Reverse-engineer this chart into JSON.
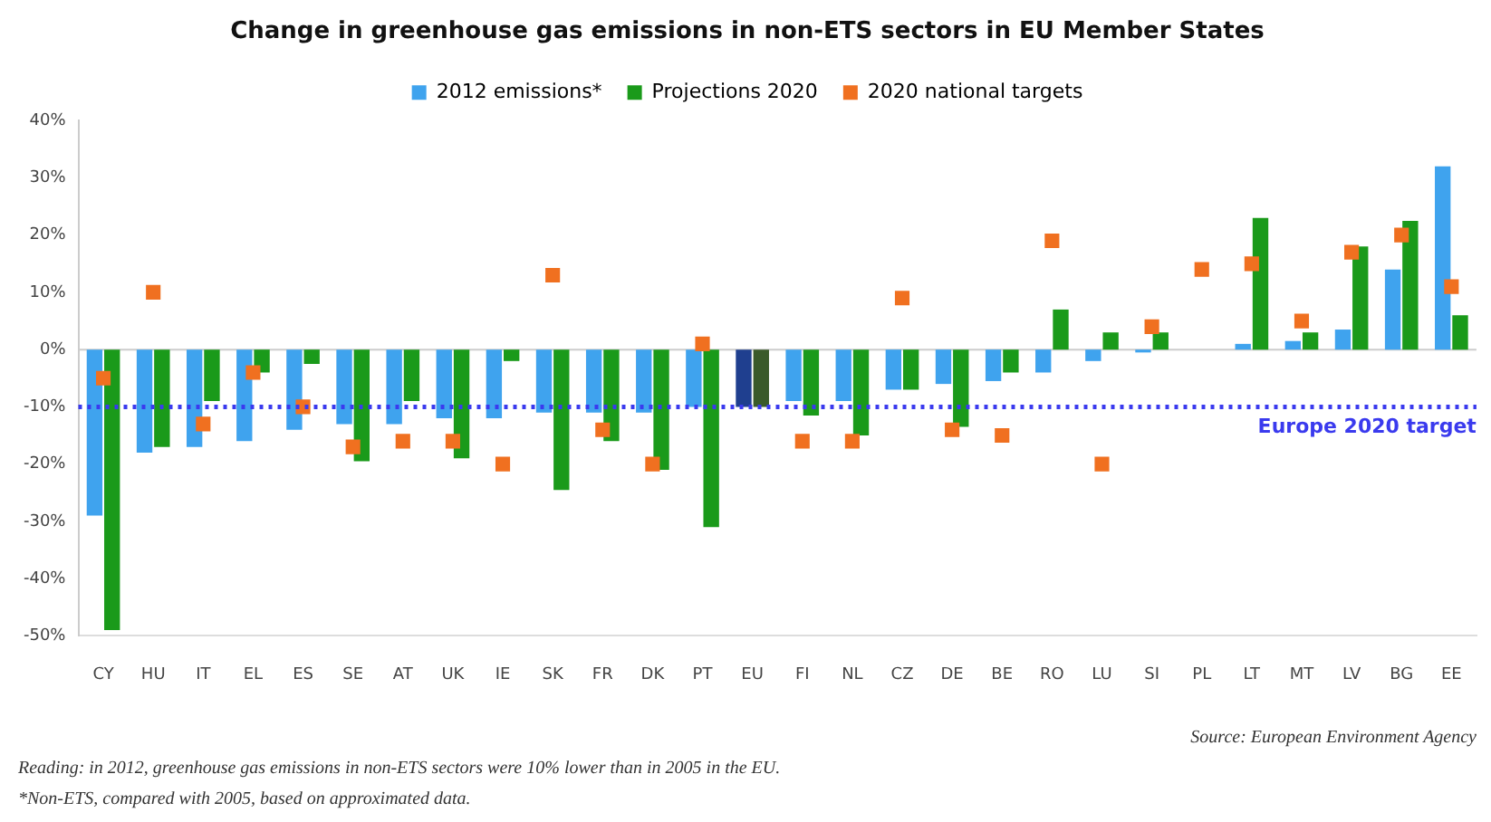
{
  "chart_data": {
    "type": "bar",
    "title": "Change in greenhouse gas emissions in non-ETS sectors in EU Member States",
    "categories": [
      "CY",
      "HU",
      "IT",
      "EL",
      "ES",
      "SE",
      "AT",
      "UK",
      "IE",
      "SK",
      "FR",
      "DK",
      "PT",
      "EU",
      "FI",
      "NL",
      "CZ",
      "DE",
      "BE",
      "RO",
      "LU",
      "SI",
      "PL",
      "LT",
      "MT",
      "LV",
      "BG",
      "EE"
    ],
    "series": [
      {
        "name": "2012 emissions*",
        "color": "#3fa3ee",
        "colors": [
          "#3fa3ee",
          "#3fa3ee",
          "#3fa3ee",
          "#3fa3ee",
          "#3fa3ee",
          "#3fa3ee",
          "#3fa3ee",
          "#3fa3ee",
          "#3fa3ee",
          "#3fa3ee",
          "#3fa3ee",
          "#3fa3ee",
          "#3fa3ee",
          "#1f3f8f",
          "#3fa3ee",
          "#3fa3ee",
          "#3fa3ee",
          "#3fa3ee",
          "#3fa3ee",
          "#3fa3ee",
          "#3fa3ee",
          "#3fa3ee",
          "#3fa3ee",
          "#3fa3ee",
          "#3fa3ee",
          "#3fa3ee",
          "#3fa3ee",
          "#3fa3ee"
        ],
        "values": [
          -29,
          -18,
          -17,
          -16,
          -14,
          -13,
          -13,
          -12,
          -12,
          -11,
          -11,
          -11,
          -10,
          -10,
          -9,
          -9,
          -7,
          -6,
          -5.5,
          -4,
          -2,
          -0.5,
          null,
          1,
          1.5,
          3.5,
          14,
          32
        ]
      },
      {
        "name": "Projections 2020",
        "color": "#1a9a1a",
        "colors": [
          "#1a9a1a",
          "#1a9a1a",
          "#1a9a1a",
          "#1a9a1a",
          "#1a9a1a",
          "#1a9a1a",
          "#1a9a1a",
          "#1a9a1a",
          "#1a9a1a",
          "#1a9a1a",
          "#1a9a1a",
          "#1a9a1a",
          "#1a9a1a",
          "#3a5a2a",
          "#1a9a1a",
          "#1a9a1a",
          "#1a9a1a",
          "#1a9a1a",
          "#1a9a1a",
          "#1a9a1a",
          "#1a9a1a",
          "#1a9a1a",
          "#1a9a1a",
          "#1a9a1a",
          "#1a9a1a",
          "#1a9a1a",
          "#1a9a1a",
          "#1a9a1a"
        ],
        "values": [
          -49,
          -17,
          -9,
          -4,
          -2.5,
          -19.5,
          -9,
          -19,
          -2,
          -24.5,
          -16,
          -21,
          -31,
          -10,
          -11.5,
          -15,
          -7,
          -13.5,
          -4,
          7,
          3,
          3,
          null,
          23,
          3,
          18,
          22.5,
          6
        ]
      },
      {
        "name": "2020 national targets",
        "type": "scatter",
        "color": "#f07020",
        "marker": "square",
        "x": [
          "CY",
          "HU",
          "IT",
          "EL",
          "ES",
          "SE",
          "AT",
          "UK",
          "IE",
          "SK",
          "FR",
          "DK",
          "PT",
          "EU",
          "FI",
          "NL",
          "CZ",
          "DE",
          "BE",
          "RO",
          "LU",
          "SI",
          "PL",
          "LT",
          "MT",
          "LV",
          "BG",
          "EE"
        ],
        "values": [
          -5,
          10,
          -13,
          -4,
          -10,
          -17,
          -16,
          -16,
          -20,
          13,
          -14,
          -20,
          1,
          null,
          -16,
          -16,
          9,
          -14,
          -15,
          19,
          -20,
          4,
          14,
          15,
          5,
          17,
          20,
          11
        ]
      }
    ],
    "ylim": [
      -50,
      40
    ],
    "yticks": [
      {
        "value": -50,
        "label": "-50%"
      },
      {
        "value": -40,
        "label": "-40%"
      },
      {
        "value": -30,
        "label": "-30%"
      },
      {
        "value": -20,
        "label": "-20%"
      },
      {
        "value": -10,
        "label": "-10%"
      },
      {
        "value": 0,
        "label": "0%"
      },
      {
        "value": 10,
        "label": "10%"
      },
      {
        "value": 20,
        "label": "20%"
      },
      {
        "value": 30,
        "label": "30%"
      },
      {
        "value": 40,
        "label": "40%"
      }
    ],
    "grid": false,
    "legend": "top",
    "ref_lines": [
      {
        "axis": "y",
        "value": -10,
        "label": "Europe 2020 target",
        "color": "#3a3aee",
        "line_style": "dotted"
      }
    ],
    "annotations": [
      "Source: European Environment Agency",
      "Reading: in 2012, greenhouse gas emissions in non-ETS sectors were 10% lower than in 2005 in the EU.",
      "*Non-ETS, compared with 2005, based on approximated data."
    ]
  }
}
